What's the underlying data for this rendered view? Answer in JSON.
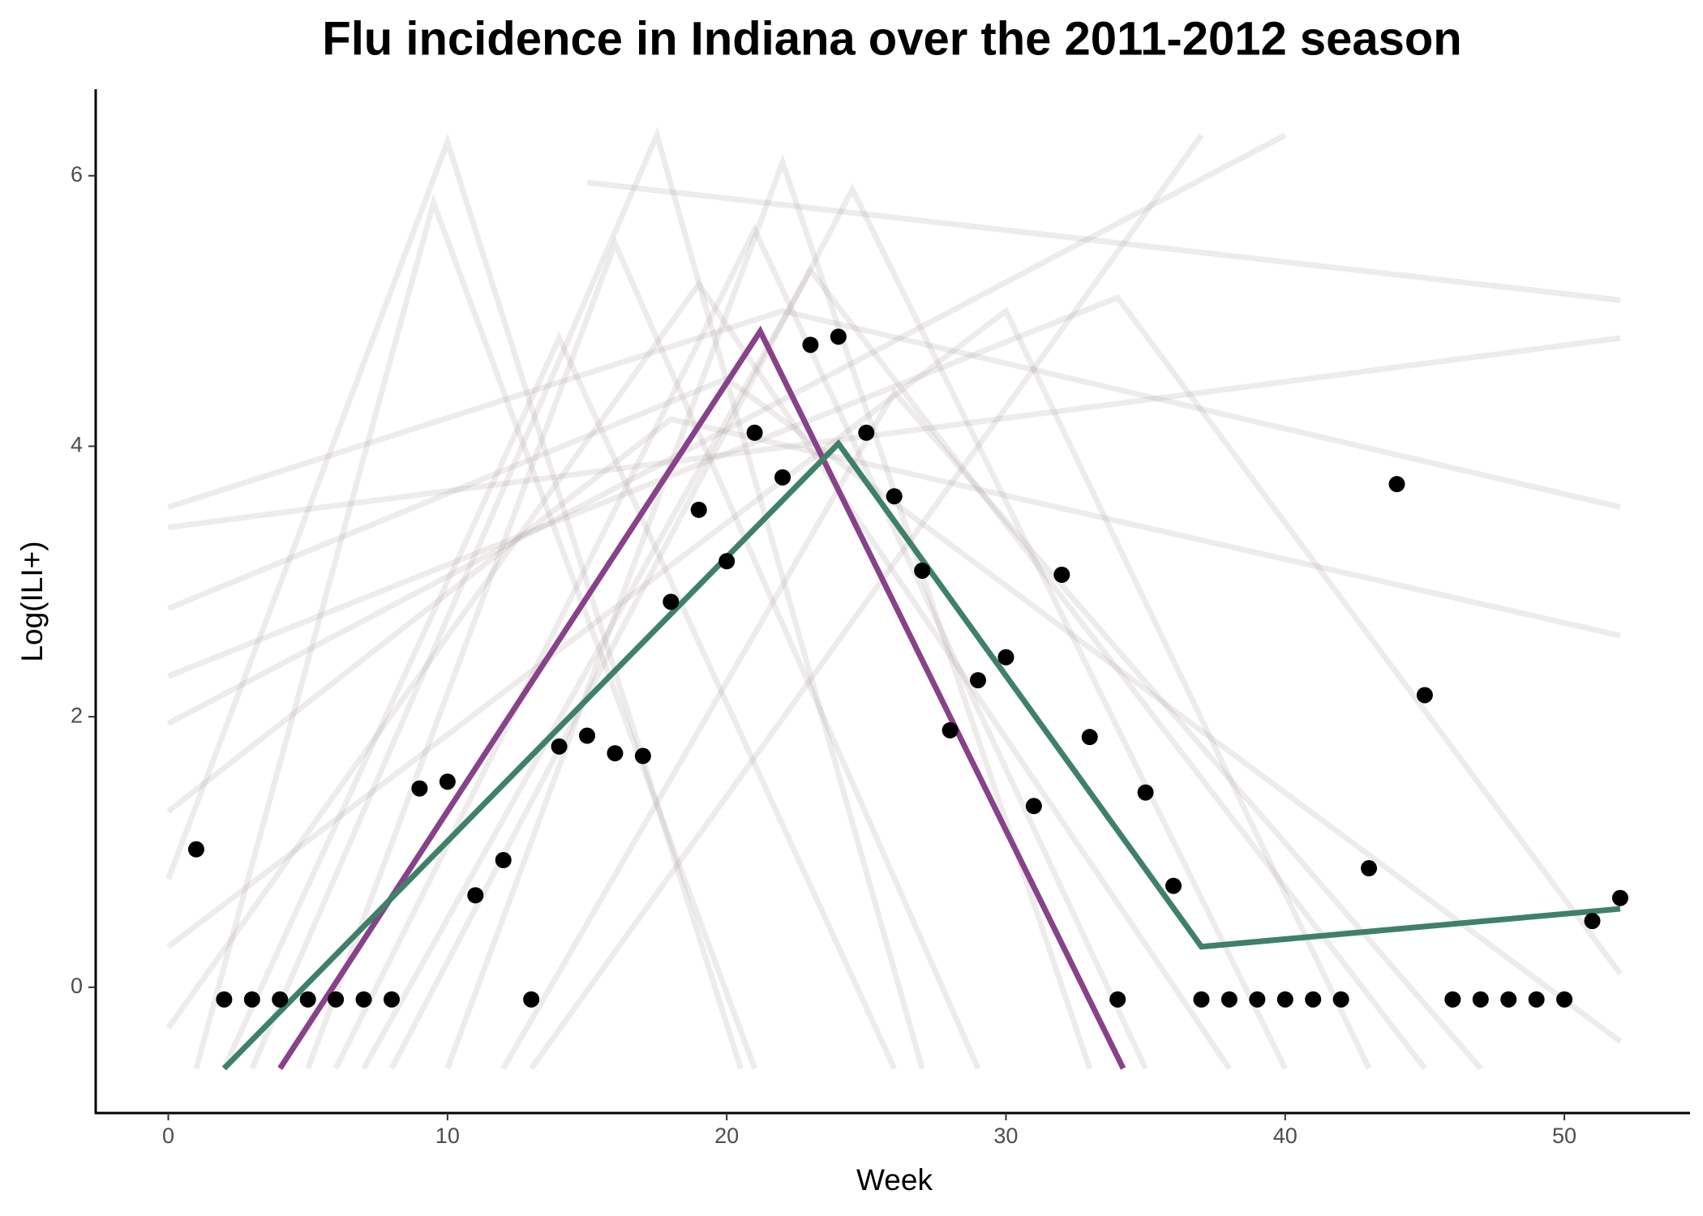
{
  "chart_data": {
    "type": "scatter",
    "title": "Flu incidence in Indiana over the 2011-2012 season",
    "xlabel": "Week",
    "ylabel": "Log(ILI+)",
    "xlim": [
      -2.6,
      54.5
    ],
    "ylim": [
      -0.93,
      6.64
    ],
    "xticks": [
      0,
      10,
      20,
      30,
      40,
      50
    ],
    "yticks": [
      0,
      2,
      4,
      6
    ],
    "point_color": "#000000",
    "x": [
      1,
      2,
      3,
      4,
      5,
      6,
      7,
      8,
      9,
      10,
      11,
      12,
      13,
      14,
      15,
      16,
      17,
      18,
      19,
      20,
      21,
      22,
      23,
      24,
      25,
      26,
      27,
      28,
      29,
      30,
      31,
      32,
      33,
      34,
      35,
      36,
      37,
      38,
      39,
      40,
      41,
      42,
      43,
      44,
      45,
      46,
      47,
      48,
      49,
      50,
      51,
      52
    ],
    "values": [
      1.02,
      -0.09,
      -0.09,
      -0.09,
      -0.09,
      -0.09,
      -0.09,
      -0.09,
      1.47,
      1.52,
      0.68,
      0.94,
      -0.09,
      1.78,
      1.86,
      1.73,
      1.71,
      2.85,
      3.53,
      3.15,
      4.1,
      3.77,
      4.75,
      4.81,
      4.1,
      3.63,
      3.08,
      1.9,
      2.27,
      2.44,
      1.34,
      3.05,
      1.85,
      -0.09,
      1.44,
      0.75,
      -0.09,
      -0.09,
      -0.09,
      -0.09,
      -0.09,
      -0.09,
      0.88,
      3.72,
      2.16,
      -0.09,
      -0.09,
      -0.09,
      -0.09,
      -0.09,
      0.49,
      0.66
    ],
    "lines": [
      {
        "color": "#87428a",
        "x": [
          4,
          21.2,
          34.2
        ],
        "values": [
          -0.6,
          4.85,
          -0.6
        ]
      },
      {
        "color": "#3f8068",
        "x": [
          2,
          24,
          37,
          52
        ],
        "values": [
          -0.6,
          4.02,
          0.3,
          0.58
        ]
      }
    ],
    "trajectory_color": "#a89a9d",
    "trajectory_opacity": 0.2,
    "trajectories": [
      {
        "x": [
          0,
          10,
          20.5
        ],
        "values": [
          0.8,
          6.25,
          -0.6
        ]
      },
      {
        "x": [
          1,
          9.5,
          21
        ],
        "values": [
          -0.6,
          5.8,
          -0.6
        ]
      },
      {
        "x": [
          3,
          17.5,
          27
        ],
        "values": [
          -0.6,
          6.3,
          -0.6
        ]
      },
      {
        "x": [
          0,
          22,
          52
        ],
        "values": [
          3.55,
          5.0,
          3.55
        ]
      },
      {
        "x": [
          0,
          40
        ],
        "values": [
          1.95,
          6.3
        ]
      },
      {
        "x": [
          15,
          52
        ],
        "values": [
          5.95,
          5.08
        ]
      },
      {
        "x": [
          0,
          52
        ],
        "values": [
          3.4,
          4.8
        ]
      },
      {
        "x": [
          6,
          21,
          35
        ],
        "values": [
          -0.6,
          5.6,
          -0.6
        ]
      },
      {
        "x": [
          8,
          24.5,
          40
        ],
        "values": [
          -0.6,
          5.9,
          -0.6
        ]
      },
      {
        "x": [
          0,
          30,
          43
        ],
        "values": [
          0.3,
          5.0,
          -0.6
        ]
      },
      {
        "x": [
          12,
          26,
          47
        ],
        "values": [
          -0.6,
          4.4,
          -0.6
        ]
      },
      {
        "x": [
          0,
          34,
          52
        ],
        "values": [
          2.3,
          5.1,
          0.1
        ]
      },
      {
        "x": [
          5,
          16,
          29
        ],
        "values": [
          -0.6,
          5.5,
          -0.6
        ]
      },
      {
        "x": [
          0,
          18,
          52
        ],
        "values": [
          1.3,
          4.2,
          2.6
        ]
      },
      {
        "x": [
          13,
          37
        ],
        "values": [
          -0.6,
          6.3
        ]
      },
      {
        "x": [
          0,
          20,
          52
        ],
        "values": [
          2.8,
          4.5,
          -0.4
        ]
      },
      {
        "x": [
          10,
          22,
          33
        ],
        "values": [
          -0.6,
          6.1,
          -0.6
        ]
      },
      {
        "x": [
          2,
          14,
          26
        ],
        "values": [
          -0.6,
          4.8,
          -0.6
        ]
      },
      {
        "x": [
          0,
          19,
          38
        ],
        "values": [
          -0.3,
          5.2,
          -0.6
        ]
      },
      {
        "x": [
          7,
          23,
          45
        ],
        "values": [
          -0.6,
          5.3,
          -0.6
        ]
      }
    ]
  }
}
